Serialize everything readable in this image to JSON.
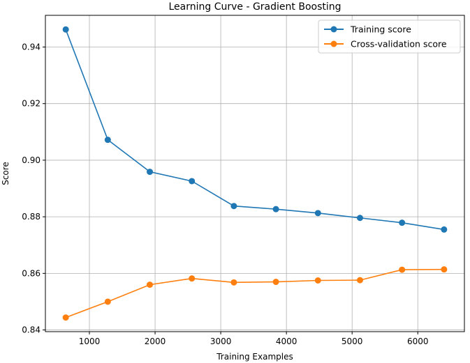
{
  "chart_data": {
    "type": "line",
    "title": "Learning Curve - Gradient Boosting",
    "xlabel": "Training Examples",
    "ylabel": "Score",
    "x": [
      640,
      1280,
      1920,
      2560,
      3200,
      3840,
      4480,
      5120,
      5760,
      6400
    ],
    "series": [
      {
        "name": "Training score",
        "color": "#1f77b4",
        "values": [
          0.9462,
          0.9072,
          0.8959,
          0.8926,
          0.8838,
          0.8827,
          0.8813,
          0.8796,
          0.8779,
          0.8755
        ]
      },
      {
        "name": "Cross-validation score",
        "color": "#ff7f0e",
        "values": [
          0.8444,
          0.85,
          0.856,
          0.8582,
          0.8568,
          0.857,
          0.8575,
          0.8576,
          0.8613,
          0.8614
        ]
      }
    ],
    "xlim": [
      330,
      6710
    ],
    "ylim": [
      0.8394,
      0.9512
    ],
    "xticks": [
      1000,
      2000,
      3000,
      4000,
      5000,
      6000
    ],
    "yticks": [
      0.84,
      0.86,
      0.88,
      0.9,
      0.92,
      0.94
    ],
    "ytick_labels": [
      "0.84",
      "0.86",
      "0.88",
      "0.90",
      "0.92",
      "0.94"
    ],
    "grid": true,
    "legend": "top-right"
  }
}
